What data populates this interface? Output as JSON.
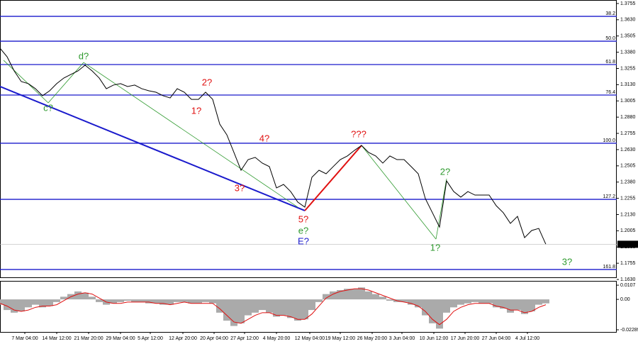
{
  "chart_data": [
    {
      "type": "line",
      "color": "#000000",
      "values": [
        1.3411,
        1.3345,
        1.3236,
        1.3154,
        1.3138,
        1.3099,
        1.3045,
        1.3083,
        1.3138,
        1.3181,
        1.3209,
        1.3236,
        1.328,
        1.3236,
        1.3181,
        1.3099,
        1.3127,
        1.3138,
        1.3116,
        1.3127,
        1.3099,
        1.3083,
        1.3072,
        1.3045,
        1.3028,
        1.3099,
        1.3072,
        1.3017,
        1.3017,
        1.3072,
        1.3017,
        1.2826,
        1.2744,
        1.2608,
        1.2471,
        1.2553,
        1.257,
        1.2526,
        1.2499,
        1.2335,
        1.2362,
        1.2307,
        1.2226,
        1.2187,
        1.2417,
        1.2471,
        1.2444,
        1.2499,
        1.2553,
        1.2581,
        1.2624,
        1.2662,
        1.2608,
        1.2581,
        1.2526,
        1.2581,
        1.2553,
        1.2553,
        1.2499,
        1.2444,
        1.2253,
        1.2144,
        1.2034,
        1.2389,
        1.2307,
        1.2264,
        1.2307,
        1.228,
        1.228,
        1.228,
        1.2198,
        1.2144,
        1.2062,
        1.2116,
        1.1952,
        1.2007,
        1.2023,
        1.1901
      ],
      "xlim": [
        0,
        87
      ],
      "xticks": [
        {
          "value": 3.5,
          "label": "7 Mar 04:00"
        },
        {
          "value": 8,
          "label": "14 Mar 12:00"
        },
        {
          "value": 12.5,
          "label": "21 Mar 20:00"
        },
        {
          "value": 17,
          "label": "29 Mar 04:00"
        },
        {
          "value": 21.2,
          "label": "5 Apr 12:00"
        },
        {
          "value": 25.8,
          "label": "12 Apr 20:00"
        },
        {
          "value": 30.2,
          "label": "20 Apr 04:00"
        },
        {
          "value": 34.5,
          "label": "27 Apr 12:00"
        },
        {
          "value": 39,
          "label": "4 May 20:00"
        },
        {
          "value": 43.7,
          "label": "12 May 04:00"
        },
        {
          "value": 48,
          "label": "19 May 12:00"
        },
        {
          "value": 52.5,
          "label": "26 May 20:00"
        },
        {
          "value": 56.7,
          "label": "3 Jun 04:00"
        },
        {
          "value": 61.2,
          "label": "10 Jun 12:00"
        },
        {
          "value": 65.6,
          "label": "17 Jun 20:00"
        },
        {
          "value": 70,
          "label": "27 Jun 04:00"
        },
        {
          "value": 74.4,
          "label": "4 Jul 12:00"
        }
      ],
      "ylim": [
        1.1652,
        1.3782
      ],
      "yticks": [
        {
          "value": 1.3755,
          "label": "1.3755"
        },
        {
          "value": 1.363,
          "label": "1.3630"
        },
        {
          "value": 1.3505,
          "label": "1.3505"
        },
        {
          "value": 1.338,
          "label": "1.3380"
        },
        {
          "value": 1.3255,
          "label": "1.3255"
        },
        {
          "value": 1.313,
          "label": "1.3130"
        },
        {
          "value": 1.3005,
          "label": "1.3005"
        },
        {
          "value": 1.288,
          "label": "1.2880"
        },
        {
          "value": 1.2755,
          "label": "1.2755"
        },
        {
          "value": 1.263,
          "label": "1.2630"
        },
        {
          "value": 1.2505,
          "label": "1.2505"
        },
        {
          "value": 1.238,
          "label": "1.2380"
        },
        {
          "value": 1.2255,
          "label": "1.2255"
        },
        {
          "value": 1.213,
          "label": "1.2130"
        },
        {
          "value": 1.2005,
          "label": "1.2005"
        },
        {
          "value": 1.188,
          "label": "1.1880"
        },
        {
          "value": 1.1755,
          "label": "1.1755"
        },
        {
          "value": 1.163,
          "label": "1.1630"
        }
      ],
      "level_color": "#1a1acc",
      "levels": [
        {
          "value": 1.3656,
          "label": "38.2"
        },
        {
          "value": 1.3465,
          "label": "50.0"
        },
        {
          "value": 1.3285,
          "label": "61.8"
        },
        {
          "value": 1.305,
          "label": "76.4"
        },
        {
          "value": 1.2679,
          "label": "100.0"
        },
        {
          "value": 1.2247,
          "label": "127.2"
        },
        {
          "value": 1.1707,
          "label": "161.8"
        }
      ],
      "trend_lines": [
        {
          "color": "#1a1acc",
          "x": [
            0,
            43
          ],
          "y": [
            1.3116,
            1.216
          ]
        },
        {
          "color": "#e01010",
          "x": [
            43,
            51
          ],
          "y": [
            1.216,
            1.2662
          ]
        },
        {
          "color": "#2e9a2e",
          "x": [
            0.5,
            6.8
          ],
          "y": [
            1.3318,
            1.299
          ]
        },
        {
          "color": "#2e9a2e",
          "x": [
            6.8,
            11.8
          ],
          "y": [
            1.299,
            1.3301
          ]
        },
        {
          "color": "#2e9a2e",
          "x": [
            11.8,
            42
          ],
          "y": [
            1.3301,
            1.2187
          ]
        },
        {
          "color": "#2e9a2e",
          "x": [
            51,
            61.5
          ],
          "y": [
            1.2662,
            1.1941
          ]
        },
        {
          "color": "#2e9a2e",
          "x": [
            61.5,
            63
          ],
          "y": [
            1.1941,
            1.2406
          ]
        }
      ],
      "annotations": [
        {
          "text": "d?",
          "color": "#2e9a2e"
        },
        {
          "text": "c?",
          "color": "#2e9a2e"
        },
        {
          "text": "2?",
          "color": "#e01010"
        },
        {
          "text": "1?",
          "color": "#e01010"
        },
        {
          "text": "3?",
          "color": "#e01010"
        },
        {
          "text": "4?",
          "color": "#e01010"
        },
        {
          "text": "5?",
          "color": "#e01010"
        },
        {
          "text": "e?",
          "color": "#2e9a2e"
        },
        {
          "text": "E?",
          "color": "#1a1acc"
        },
        {
          "text": "???",
          "color": "#e01010"
        },
        {
          "text": "2?",
          "color": "#2e9a2e"
        },
        {
          "text": "1?",
          "color": "#2e9a2e"
        },
        {
          "text": "3?",
          "color": "#2e9a2e"
        }
      ],
      "last_price": 1.1901
    },
    {
      "type": "bar",
      "color": "#aaaaaa",
      "signal_color": "#e01010",
      "values": [
        -0.004,
        -0.008,
        -0.01,
        -0.009,
        -0.006,
        -0.004,
        -0.006,
        -0.005,
        -0.002,
        0.002,
        0.004,
        0.006,
        0.005,
        0.002,
        -0.002,
        -0.004,
        -0.003,
        -0.002,
        -0.001,
        -0.002,
        -0.002,
        -0.003,
        -0.003,
        -0.004,
        -0.004,
        -0.002,
        -0.002,
        -0.003,
        -0.003,
        -0.002,
        -0.003,
        -0.01,
        -0.016,
        -0.02,
        -0.018,
        -0.012,
        -0.01,
        -0.008,
        -0.01,
        -0.013,
        -0.012,
        -0.014,
        -0.016,
        -0.015,
        -0.008,
        -0.002,
        0.004,
        0.006,
        0.007,
        0.008,
        0.008,
        0.009,
        0.006,
        0.004,
        0.002,
        -0.001,
        -0.002,
        -0.002,
        -0.004,
        -0.006,
        -0.012,
        -0.018,
        -0.022,
        -0.01,
        -0.006,
        -0.004,
        -0.003,
        -0.002,
        -0.003,
        -0.003,
        -0.006,
        -0.007,
        -0.01,
        -0.008,
        -0.011,
        -0.009,
        -0.004,
        -0.003
      ],
      "signal": [
        -0.003,
        -0.005,
        -0.008,
        -0.009,
        -0.008,
        -0.006,
        -0.005,
        -0.005,
        -0.004,
        -0.001,
        0.002,
        0.004,
        0.005,
        0.004,
        0.001,
        -0.002,
        -0.003,
        -0.003,
        -0.002,
        -0.002,
        -0.002,
        -0.002,
        -0.003,
        -0.003,
        -0.004,
        -0.003,
        -0.002,
        -0.003,
        -0.003,
        -0.003,
        -0.003,
        -0.007,
        -0.012,
        -0.017,
        -0.018,
        -0.015,
        -0.012,
        -0.01,
        -0.01,
        -0.012,
        -0.012,
        -0.013,
        -0.015,
        -0.015,
        -0.011,
        -0.005,
        0.001,
        0.004,
        0.006,
        0.007,
        0.008,
        0.008,
        0.007,
        0.005,
        0.003,
        0.001,
        -0.001,
        -0.002,
        -0.003,
        -0.005,
        -0.009,
        -0.015,
        -0.019,
        -0.015,
        -0.009,
        -0.006,
        -0.004,
        -0.003,
        -0.003,
        -0.003,
        -0.005,
        -0.006,
        -0.008,
        -0.008,
        -0.01,
        -0.009,
        -0.006,
        -0.004
      ],
      "ylim": [
        -0.0245,
        0.0134
      ],
      "yticks": [
        {
          "value": 0.0107,
          "label": "0.0107"
        },
        {
          "value": 0,
          "label": "0.00"
        },
        {
          "value": -0.02289,
          "label": "-0.02289"
        }
      ]
    }
  ]
}
